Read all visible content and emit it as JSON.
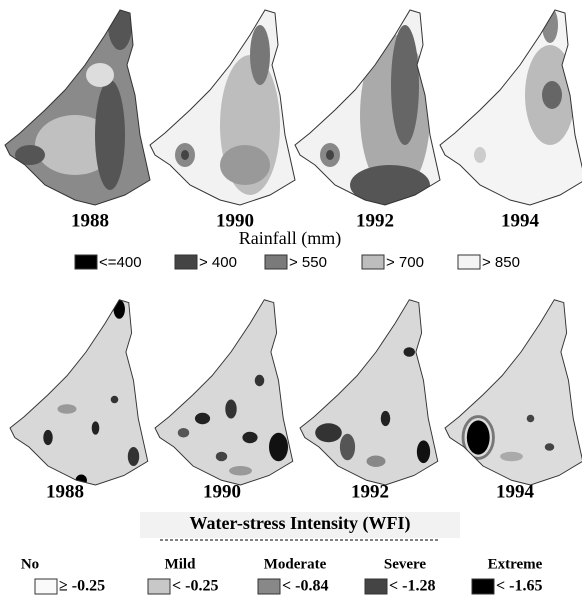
{
  "rainfall": {
    "years": [
      "1988",
      "1990",
      "1992",
      "1994"
    ],
    "title": "Rainfall (mm)",
    "legend": [
      "<=400",
      "> 400",
      "> 550",
      "> 700",
      "> 850"
    ]
  },
  "water_stress": {
    "years": [
      "1988",
      "1990",
      "1992",
      "1994"
    ],
    "title": "Water-stress Intensity (WFI)",
    "classes": [
      {
        "name": "No",
        "label": "≥ -0.25"
      },
      {
        "name": "Mild",
        "label": "< -0.25"
      },
      {
        "name": "Moderate",
        "label": "< -0.84"
      },
      {
        "name": "Severe",
        "label": "< -1.28"
      },
      {
        "name": "Extreme",
        "label": "< -1.65"
      }
    ]
  }
}
